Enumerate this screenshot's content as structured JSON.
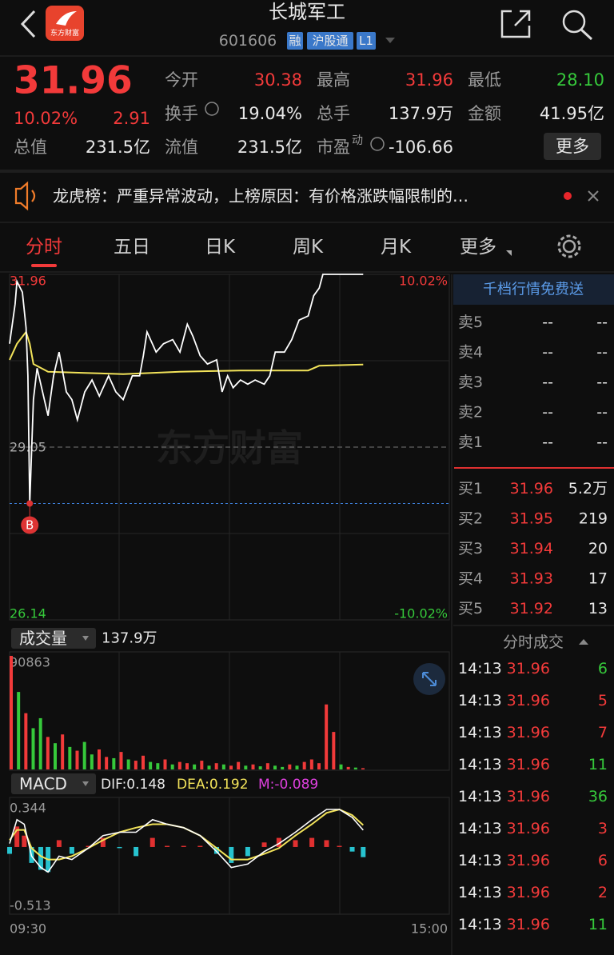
{
  "header": {
    "logo": "东方财富",
    "title": "长城军工",
    "code": "601606",
    "tags": [
      "融",
      "沪股通",
      "L1"
    ]
  },
  "quote": {
    "price": "31.96",
    "change_pct": "10.02%",
    "change": "2.91",
    "more": "更多",
    "fields": [
      {
        "label": "今开",
        "value": "30.38",
        "color": "#f23a3a"
      },
      {
        "label": "最高",
        "value": "31.96",
        "color": "#f23a3a"
      },
      {
        "label": "最低",
        "value": "28.10",
        "color": "#36c93b"
      },
      {
        "label": "换手",
        "value": "19.04%"
      },
      {
        "label": "总手",
        "value": "137.9万"
      },
      {
        "label": "金额",
        "value": "41.95亿"
      },
      {
        "label": "总值",
        "value": "231.5亿"
      },
      {
        "label": "流值",
        "value": "231.5亿"
      },
      {
        "label": "市盈",
        "sup": "动",
        "value": "-106.66"
      }
    ]
  },
  "notice": "龙虎榜：严重异常波动，上榜原因：有价格涨跌幅限制的…",
  "tabs": [
    "分时",
    "五日",
    "日K",
    "周K",
    "月K",
    "更多"
  ],
  "intraday": {
    "type": "line",
    "watermark": "东方财富",
    "xlim": [
      0,
      240
    ],
    "xticks": [
      {
        "value": 0,
        "label": "09:30"
      },
      {
        "value": 240,
        "label": "15:00"
      }
    ],
    "ylim": [
      26.14,
      31.96
    ],
    "yticks": [
      31.96,
      29.05,
      26.14
    ],
    "pct_ticks": [
      {
        "value": 31.96,
        "label": "10.02%"
      },
      {
        "value": 26.14,
        "label": "-10.02%"
      }
    ],
    "x": [
      0,
      3,
      4,
      7,
      9,
      10,
      11,
      13,
      15,
      17,
      21,
      24,
      27,
      31,
      34,
      37,
      41,
      45,
      49,
      54,
      58,
      62,
      67,
      71,
      73,
      75,
      80,
      84,
      89,
      93,
      97,
      100,
      104,
      108,
      113,
      116,
      119,
      122,
      126,
      130,
      134,
      139,
      142,
      145,
      150,
      154,
      158,
      163,
      166,
      169,
      171,
      193
    ],
    "series": [
      {
        "color": "#ffffff",
        "values": [
          30.79,
          31.46,
          31.84,
          31.66,
          31.06,
          30.25,
          28.1,
          29.85,
          30.38,
          30.11,
          29.58,
          30.25,
          30.65,
          29.98,
          29.85,
          29.51,
          29.98,
          30.18,
          29.91,
          30.25,
          29.98,
          29.85,
          30.25,
          30.25,
          30.59,
          30.99,
          30.65,
          30.79,
          30.86,
          30.65,
          31.12,
          30.92,
          30.59,
          30.45,
          30.52,
          29.98,
          30.25,
          30.05,
          30.18,
          30.11,
          30.18,
          30.11,
          30.25,
          30.65,
          30.65,
          30.86,
          31.19,
          31.26,
          31.6,
          31.73,
          31.96,
          31.96
        ]
      }
    ],
    "avg": {
      "color": "#f2e35a",
      "x": [
        0,
        4,
        9,
        11,
        13,
        21,
        41,
        62,
        93,
        126,
        163,
        169,
        193
      ],
      "values": [
        30.52,
        30.79,
        30.99,
        30.79,
        30.45,
        30.32,
        30.3,
        30.28,
        30.32,
        30.34,
        30.34,
        30.42,
        30.44
      ]
    },
    "marker": {
      "label": "B",
      "x": 11,
      "value": 28.1
    }
  },
  "volume": {
    "type": "bar",
    "label": "成交量",
    "total": "137.9万",
    "ylim": [
      0,
      90863
    ],
    "yticks": [
      90863
    ],
    "x": [
      0,
      4,
      8,
      12,
      16,
      20,
      24,
      28,
      32,
      36,
      40,
      44,
      48,
      52,
      56,
      60,
      64,
      68,
      72,
      76,
      80,
      84,
      88,
      92,
      96,
      100,
      104,
      108,
      112,
      116,
      120,
      124,
      128,
      132,
      136,
      140,
      144,
      148,
      152,
      156,
      160,
      164,
      168,
      172,
      176,
      180,
      184,
      188,
      192
    ],
    "values": [
      90863,
      62000,
      45000,
      33000,
      41000,
      26000,
      21000,
      28000,
      18000,
      15000,
      22000,
      12000,
      16000,
      10000,
      9000,
      14000,
      8000,
      7000,
      11000,
      6000,
      5000,
      8000,
      4000,
      6000,
      5000,
      4000,
      7000,
      3000,
      5000,
      4000,
      3000,
      6000,
      3000,
      4000,
      2500,
      5000,
      3000,
      2000,
      4000,
      3000,
      6000,
      8000,
      5000,
      52000,
      30000,
      4000,
      2000,
      1500,
      1000
    ],
    "colors": [
      "#f23a3a",
      "#36c93b",
      "#f23a3a",
      "#36c93b",
      "#36c93b",
      "#f23a3a",
      "#36c93b",
      "#f23a3a",
      "#36c93b",
      "#f23a3a",
      "#36c93b",
      "#36c93b",
      "#f23a3a",
      "#f23a3a",
      "#36c93b",
      "#f23a3a",
      "#36c93b",
      "#f23a3a",
      "#f23a3a",
      "#36c93b",
      "#36c93b",
      "#f23a3a",
      "#36c93b",
      "#f23a3a",
      "#f23a3a",
      "#36c93b",
      "#f23a3a",
      "#36c93b",
      "#f23a3a",
      "#36c93b",
      "#f23a3a",
      "#f23a3a",
      "#36c93b",
      "#f23a3a",
      "#36c93b",
      "#f23a3a",
      "#36c93b",
      "#36c93b",
      "#f23a3a",
      "#36c93b",
      "#f23a3a",
      "#f23a3a",
      "#f23a3a",
      "#f23a3a",
      "#f23a3a",
      "#36c93b",
      "#f23a3a",
      "#36c93b",
      "#f23a3a"
    ]
  },
  "macd": {
    "type": "macd",
    "label": "MACD",
    "dif_label": "DIF:0.148",
    "dea_label": "DEA:0.192",
    "m_label": "M:-0.089",
    "ylim": [
      -0.513,
      0.344
    ],
    "yticks": [
      0.344,
      -0.513
    ],
    "x": [
      0,
      4,
      8,
      12,
      17,
      21,
      27,
      34,
      43,
      51,
      60,
      69,
      78,
      86,
      95,
      104,
      113,
      121,
      130,
      139,
      147,
      156,
      165,
      173,
      180,
      187,
      193
    ],
    "dif": [
      0.03,
      0.24,
      0.2,
      -0.08,
      -0.18,
      -0.22,
      -0.08,
      -0.11,
      -0.01,
      0.1,
      0.13,
      0.13,
      0.24,
      0.2,
      0.17,
      0.1,
      -0.04,
      -0.18,
      -0.15,
      -0.04,
      0.03,
      0.13,
      0.24,
      0.33,
      0.33,
      0.26,
      0.148
    ],
    "dea": [
      0.06,
      0.15,
      0.15,
      -0.01,
      -0.08,
      -0.11,
      -0.11,
      -0.08,
      -0.01,
      0.06,
      0.13,
      0.17,
      0.2,
      0.2,
      0.17,
      0.1,
      -0.01,
      -0.11,
      -0.11,
      -0.06,
      -0.01,
      0.1,
      0.2,
      0.3,
      0.33,
      0.28,
      0.192
    ],
    "m": [
      -0.06,
      0.18,
      0.1,
      -0.14,
      -0.2,
      -0.22,
      0.06,
      -0.06,
      0.01,
      0.08,
      -0.01,
      -0.08,
      0.08,
      0.01,
      0.01,
      0.01,
      -0.06,
      -0.14,
      -0.08,
      0.04,
      0.08,
      0.06,
      0.08,
      0.06,
      0.01,
      -0.04,
      -0.089
    ],
    "dif_color": "#ffffff",
    "dea_color": "#f2e35a",
    "up_color": "#e03030",
    "down_color": "#27c3cf"
  },
  "order_book": {
    "banner": "千档行情免费送",
    "asks": [
      {
        "label": "卖5",
        "price": "--",
        "volume": "--"
      },
      {
        "label": "卖4",
        "price": "--",
        "volume": "--"
      },
      {
        "label": "卖3",
        "price": "--",
        "volume": "--"
      },
      {
        "label": "卖2",
        "price": "--",
        "volume": "--"
      },
      {
        "label": "卖1",
        "price": "--",
        "volume": "--"
      }
    ],
    "bids": [
      {
        "label": "买1",
        "price": "31.96",
        "volume": "5.2万"
      },
      {
        "label": "买2",
        "price": "31.95",
        "volume": "219"
      },
      {
        "label": "买3",
        "price": "31.94",
        "volume": "20"
      },
      {
        "label": "买4",
        "price": "31.93",
        "volume": "17"
      },
      {
        "label": "买5",
        "price": "31.92",
        "volume": "13"
      }
    ]
  },
  "trades": {
    "title": "分时成交",
    "rows": [
      {
        "time": "14:13",
        "price": "31.96",
        "volume": "6",
        "color": "#36c93b"
      },
      {
        "time": "14:13",
        "price": "31.96",
        "volume": "5",
        "color": "#f23a3a"
      },
      {
        "time": "14:13",
        "price": "31.96",
        "volume": "7",
        "color": "#f23a3a"
      },
      {
        "time": "14:13",
        "price": "31.96",
        "volume": "11",
        "color": "#36c93b"
      },
      {
        "time": "14:13",
        "price": "31.96",
        "volume": "36",
        "color": "#36c93b"
      },
      {
        "time": "14:13",
        "price": "31.96",
        "volume": "3",
        "color": "#f23a3a"
      },
      {
        "time": "14:13",
        "price": "31.96",
        "volume": "6",
        "color": "#f23a3a"
      },
      {
        "time": "14:13",
        "price": "31.96",
        "volume": "2",
        "color": "#f23a3a"
      },
      {
        "time": "14:13",
        "price": "31.96",
        "volume": "11",
        "color": "#36c93b"
      }
    ]
  }
}
